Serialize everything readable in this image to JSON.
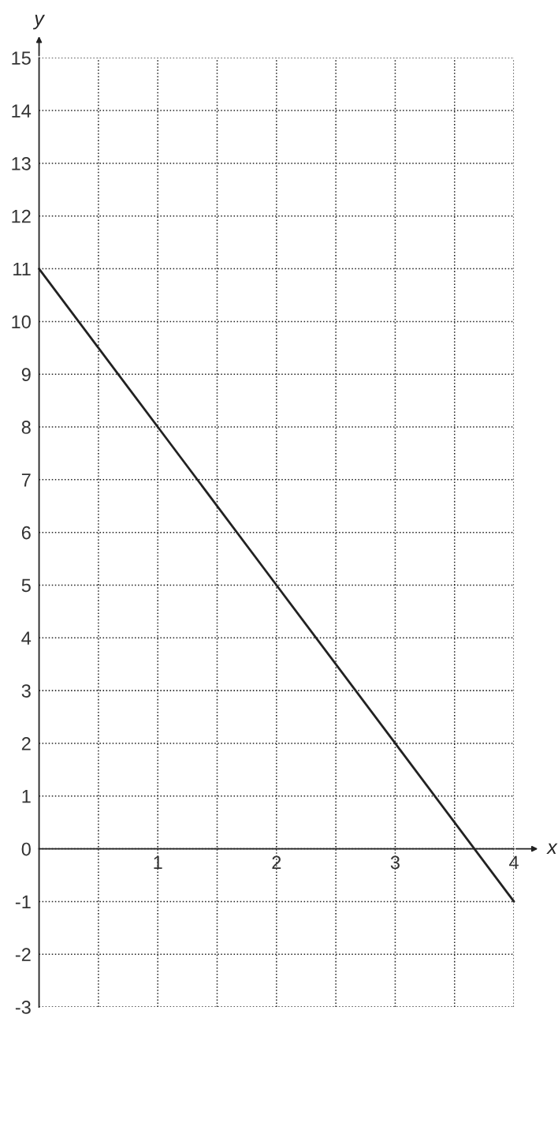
{
  "chart_data": {
    "type": "line",
    "xlabel": "x",
    "ylabel": "y",
    "x": [
      0,
      1,
      2,
      3,
      4
    ],
    "series": [
      {
        "color": "#222222",
        "values": [
          11,
          8,
          5,
          2,
          -1
        ]
      }
    ],
    "xlim": [
      0,
      4
    ],
    "ylim": [
      -3,
      15
    ],
    "xticks": [
      {
        "value": 0.5,
        "label": null
      },
      1,
      {
        "value": 1.5,
        "label": null
      },
      2,
      {
        "value": 2.5,
        "label": null
      },
      3,
      {
        "value": 3.5,
        "label": null
      },
      4
    ],
    "yticks": [
      -3,
      -2,
      -1,
      0,
      1,
      2,
      3,
      4,
      5,
      6,
      7,
      8,
      9,
      10,
      11,
      12,
      13,
      14,
      15
    ],
    "grid": true,
    "marker": "none",
    "line_style": "solid"
  }
}
